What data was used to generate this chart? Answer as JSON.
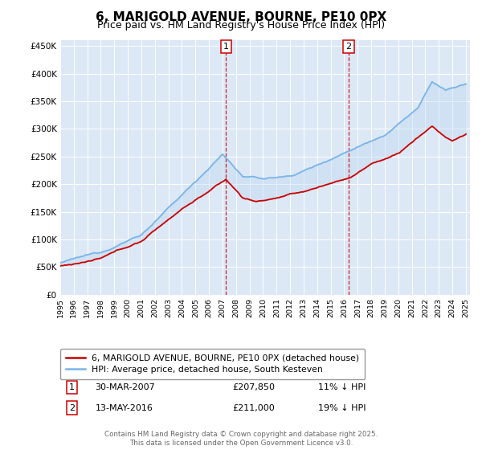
{
  "title": "6, MARIGOLD AVENUE, BOURNE, PE10 0PX",
  "subtitle": "Price paid vs. HM Land Registry's House Price Index (HPI)",
  "ylim": [
    0,
    460000
  ],
  "yticks": [
    0,
    50000,
    100000,
    150000,
    200000,
    250000,
    300000,
    350000,
    400000,
    450000
  ],
  "ytick_labels": [
    "£0",
    "£50K",
    "£100K",
    "£150K",
    "£200K",
    "£250K",
    "£300K",
    "£350K",
    "£400K",
    "£450K"
  ],
  "background_color": "#ffffff",
  "plot_bg_color": "#dce8f5",
  "grid_color": "#ffffff",
  "hpi_color": "#7ab4e8",
  "price_color": "#cc0000",
  "fill_color": "#b8d4f0",
  "marker1_price": 207850,
  "marker2_price": 211000,
  "marker1_date": "30-MAR-2007",
  "marker2_date": "13-MAY-2016",
  "marker1_pct": "11% ↓ HPI",
  "marker2_pct": "19% ↓ HPI",
  "legend_line1": "6, MARIGOLD AVENUE, BOURNE, PE10 0PX (detached house)",
  "legend_line2": "HPI: Average price, detached house, South Kesteven",
  "footer": "Contains HM Land Registry data © Crown copyright and database right 2025.\nThis data is licensed under the Open Government Licence v3.0.",
  "title_fontsize": 11,
  "subtitle_fontsize": 9
}
